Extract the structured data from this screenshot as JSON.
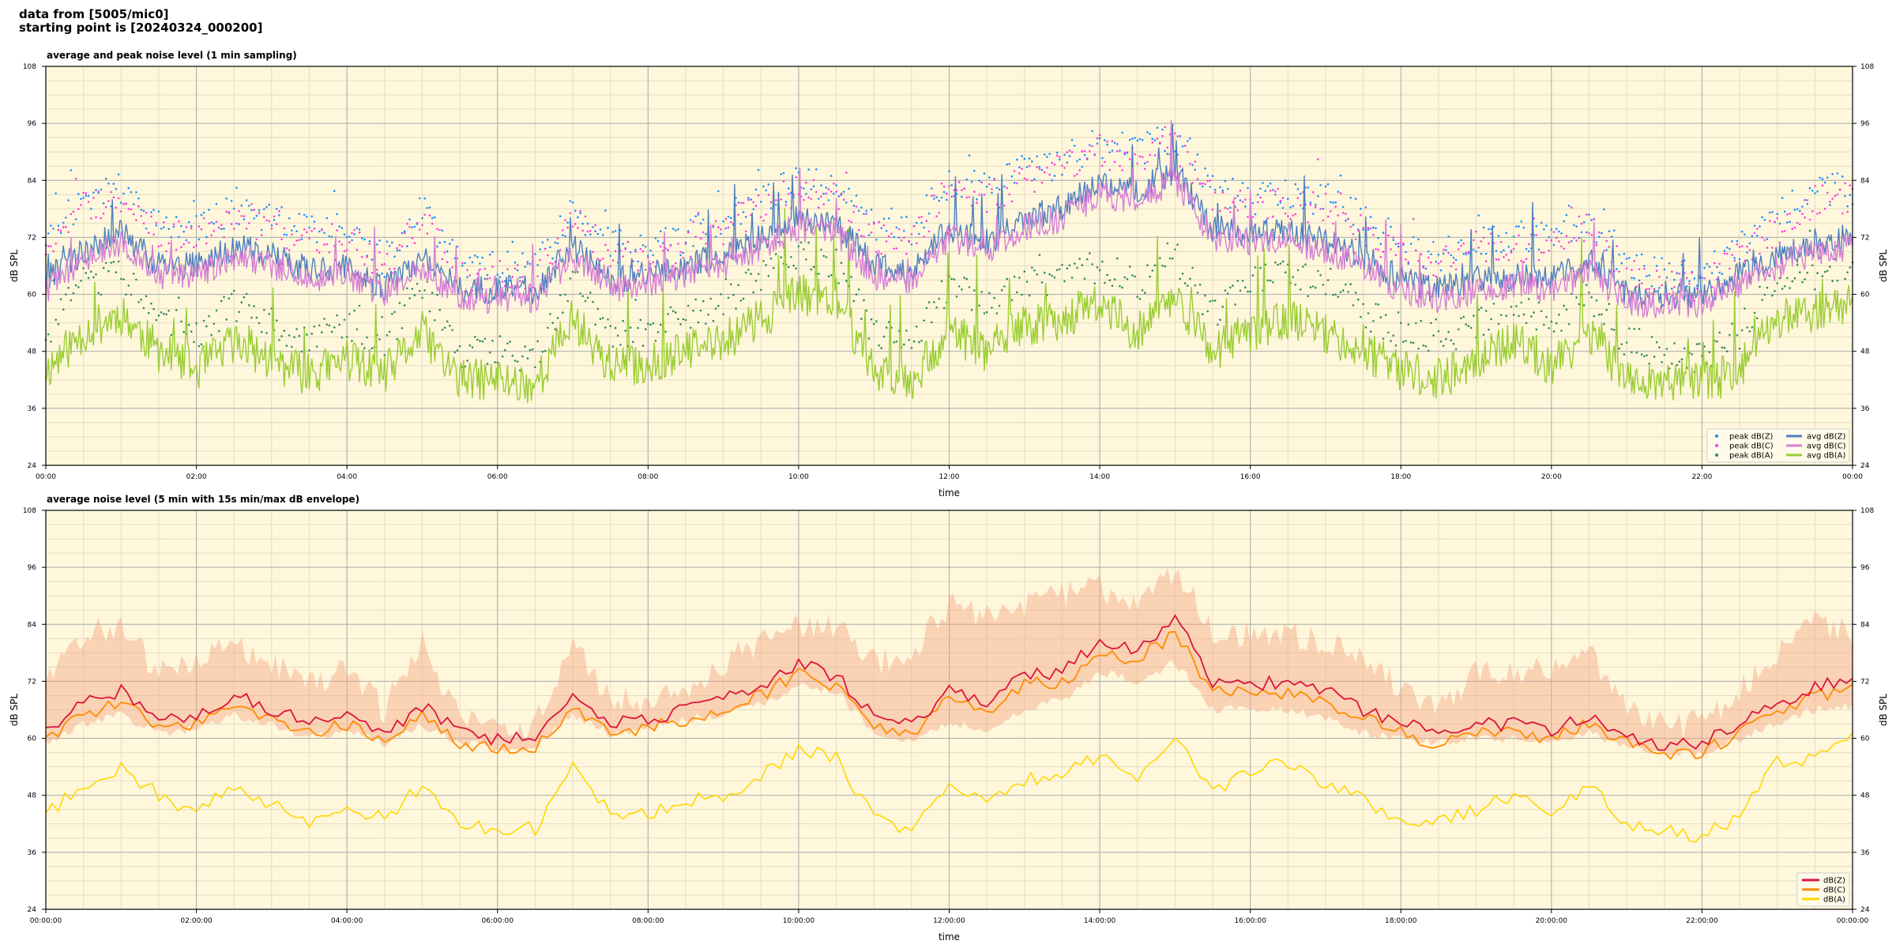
{
  "header": {
    "line1": "data from [5005/mic0]",
    "line2": "starting point is [20240324_000200]"
  },
  "colors": {
    "plot_background": "#fff7dc",
    "grid_major": "#a8a8a8",
    "grid_minor": "#e3dcc2",
    "avg_z": "#4e7fbf",
    "avg_c": "#d67fd6",
    "avg_a": "#9acd32",
    "peak_z": "#1e90ff",
    "peak_c": "#ff3ddb",
    "peak_a": "#2e8b57",
    "bottom_z": "#dc143c",
    "bottom_c": "#ff8c00",
    "bottom_a": "#ffd700",
    "envelope": "#f4a582"
  },
  "chart_data": [
    {
      "type": "line",
      "title": "average and peak noise level (1 min sampling)",
      "xlabel": "time",
      "ylabel": "dB SPL",
      "ylim": [
        24,
        108
      ],
      "yticks": [
        "24",
        "36",
        "48",
        "60",
        "72",
        "84",
        "96",
        "108"
      ],
      "xlim": [
        "00:00",
        "24:00"
      ],
      "xticks": [
        "00:00",
        "02:00",
        "04:00",
        "06:00",
        "08:00",
        "10:00",
        "12:00",
        "14:00",
        "16:00",
        "18:00",
        "20:00",
        "22:00",
        "00:00"
      ],
      "grid": true,
      "legend_position": "bottom-right",
      "legend": [
        "peak dB(Z)",
        "peak dB(C)",
        "peak dB(A)",
        "avg dB(Z)",
        "avg dB(C)",
        "avg dB(A)"
      ],
      "x": [
        0,
        0.5,
        1,
        1.5,
        2,
        2.5,
        3,
        3.5,
        4,
        4.5,
        5,
        5.5,
        6,
        6.5,
        7,
        7.5,
        8,
        8.5,
        9,
        9.5,
        10,
        10.5,
        11,
        11.5,
        12,
        12.5,
        13,
        13.5,
        14,
        14.5,
        15,
        15.5,
        16,
        16.5,
        17,
        17.5,
        18,
        18.5,
        19,
        19.5,
        20,
        20.5,
        21,
        21.5,
        22,
        22.5,
        23,
        23.5,
        24
      ],
      "series": [
        {
          "name": "avg dB(Z)",
          "style": "line",
          "values": [
            63,
            69,
            73,
            66,
            66,
            70,
            68,
            65,
            66,
            61,
            68,
            61,
            61,
            61,
            70,
            63,
            64,
            66,
            68,
            72,
            76,
            75,
            66,
            65,
            74,
            71,
            76,
            78,
            84,
            82,
            86,
            74,
            73,
            73,
            71,
            68,
            63,
            61,
            63,
            64,
            63,
            67,
            60,
            60,
            60,
            64,
            68,
            71,
            72
          ]
        },
        {
          "name": "avg dB(C)",
          "style": "line",
          "values": [
            61,
            67,
            71,
            64,
            64,
            68,
            66,
            63,
            64,
            60,
            66,
            59,
            59,
            59,
            68,
            61,
            62,
            64,
            66,
            70,
            74,
            73,
            64,
            63,
            72,
            69,
            74,
            76,
            81,
            80,
            84,
            72,
            71,
            71,
            69,
            66,
            61,
            59,
            61,
            62,
            61,
            65,
            58,
            58,
            58,
            62,
            66,
            69,
            70
          ]
        },
        {
          "name": "avg dB(A)",
          "style": "line",
          "values": [
            44,
            52,
            56,
            48,
            44,
            50,
            46,
            43,
            46,
            43,
            52,
            42,
            42,
            41,
            55,
            45,
            45,
            48,
            50,
            55,
            60,
            59,
            44,
            42,
            52,
            48,
            53,
            55,
            58,
            52,
            60,
            48,
            52,
            55,
            52,
            48,
            44,
            42,
            46,
            50,
            45,
            52,
            42,
            42,
            41,
            44,
            55,
            56,
            58
          ]
        },
        {
          "name": "peak dB(Z)",
          "style": "points",
          "values": [
            72,
            80,
            82,
            74,
            74,
            78,
            76,
            73,
            74,
            67,
            78,
            66,
            66,
            65,
            78,
            70,
            70,
            72,
            76,
            80,
            84,
            82,
            74,
            74,
            84,
            82,
            86,
            88,
            92,
            90,
            93,
            82,
            80,
            81,
            80,
            76,
            70,
            68,
            72,
            72,
            72,
            76,
            66,
            64,
            64,
            70,
            76,
            82,
            82
          ]
        },
        {
          "name": "peak dB(C)",
          "style": "points",
          "values": [
            70,
            78,
            80,
            72,
            72,
            76,
            74,
            71,
            72,
            65,
            76,
            64,
            64,
            63,
            76,
            68,
            68,
            70,
            74,
            78,
            82,
            80,
            72,
            72,
            82,
            80,
            84,
            86,
            90,
            88,
            91,
            80,
            78,
            79,
            78,
            74,
            68,
            66,
            70,
            70,
            70,
            74,
            64,
            62,
            62,
            68,
            74,
            80,
            80
          ]
        },
        {
          "name": "peak dB(A)",
          "style": "points",
          "values": [
            52,
            62,
            64,
            56,
            52,
            58,
            54,
            50,
            54,
            50,
            62,
            48,
            48,
            46,
            64,
            52,
            52,
            56,
            58,
            64,
            68,
            66,
            52,
            50,
            62,
            58,
            62,
            64,
            66,
            62,
            68,
            56,
            62,
            64,
            62,
            56,
            52,
            50,
            54,
            58,
            54,
            60,
            50,
            48,
            46,
            52,
            64,
            64,
            66
          ]
        }
      ]
    },
    {
      "type": "line",
      "title": "average noise level (5 min with 15s min/max dB envelope)",
      "xlabel": "time",
      "ylabel": "dB SPL",
      "ylim": [
        24,
        108
      ],
      "yticks": [
        "24",
        "36",
        "48",
        "60",
        "72",
        "84",
        "96",
        "108"
      ],
      "xlim": [
        "00:00:00",
        "24:00:00"
      ],
      "xticks": [
        "00:00:00",
        "02:00:00",
        "04:00:00",
        "06:00:00",
        "08:00:00",
        "10:00:00",
        "12:00:00",
        "14:00:00",
        "16:00:00",
        "18:00:00",
        "20:00:00",
        "22:00:00",
        "00:00:00"
      ],
      "grid": true,
      "legend_position": "bottom-right",
      "legend": [
        "dB(Z)",
        "dB(C)",
        "dB(A)"
      ],
      "x": [
        0,
        0.5,
        1,
        1.5,
        2,
        2.5,
        3,
        3.5,
        4,
        4.5,
        5,
        5.5,
        6,
        6.5,
        7,
        7.5,
        8,
        8.5,
        9,
        9.5,
        10,
        10.5,
        11,
        11.5,
        12,
        12.5,
        13,
        13.5,
        14,
        14.5,
        15,
        15.5,
        16,
        16.5,
        17,
        17.5,
        18,
        18.5,
        19,
        19.5,
        20,
        20.5,
        21,
        21.5,
        22,
        22.5,
        23,
        23.5,
        24
      ],
      "series": [
        {
          "name": "dB(Z)",
          "values": [
            62,
            67,
            70,
            64,
            65,
            69,
            66,
            63,
            65,
            61,
            67,
            61,
            60,
            60,
            69,
            63,
            64,
            66,
            68,
            71,
            76,
            73,
            65,
            63,
            70,
            68,
            73,
            74,
            80,
            79,
            85,
            72,
            72,
            71,
            70,
            66,
            63,
            61,
            63,
            63,
            62,
            65,
            61,
            58,
            59,
            63,
            67,
            71,
            72
          ]
        },
        {
          "name": "dB(C)",
          "values": [
            60,
            65,
            68,
            62,
            63,
            67,
            64,
            61,
            63,
            59,
            65,
            59,
            58,
            58,
            67,
            61,
            62,
            64,
            66,
            69,
            74,
            71,
            63,
            61,
            68,
            66,
            71,
            72,
            77,
            77,
            82,
            70,
            70,
            69,
            68,
            64,
            61,
            59,
            61,
            61,
            60,
            63,
            59,
            56,
            57,
            61,
            65,
            69,
            70
          ]
        },
        {
          "name": "dB(A)",
          "values": [
            44,
            50,
            54,
            48,
            44,
            50,
            46,
            42,
            46,
            43,
            50,
            42,
            41,
            41,
            54,
            44,
            44,
            47,
            48,
            52,
            58,
            56,
            43,
            41,
            50,
            46,
            51,
            53,
            56,
            52,
            60,
            48,
            53,
            55,
            50,
            47,
            43,
            42,
            45,
            48,
            44,
            50,
            42,
            41,
            39,
            44,
            55,
            56,
            62
          ]
        }
      ],
      "envelope": {
        "min": [
          59,
          63,
          65,
          61,
          62,
          65,
          63,
          60,
          62,
          59,
          63,
          59,
          58,
          58,
          65,
          61,
          62,
          64,
          65,
          67,
          71,
          70,
          61,
          60,
          63,
          62,
          66,
          68,
          74,
          72,
          76,
          66,
          66,
          66,
          64,
          61,
          60,
          59,
          60,
          60,
          59,
          61,
          58,
          57,
          57,
          60,
          63,
          66,
          67
        ],
        "max": [
          72,
          82,
          84,
          74,
          76,
          80,
          76,
          72,
          74,
          66,
          80,
          64,
          63,
          63,
          80,
          68,
          68,
          70,
          76,
          80,
          84,
          84,
          76,
          78,
          88,
          86,
          88,
          90,
          92,
          88,
          96,
          82,
          82,
          82,
          80,
          78,
          70,
          66,
          74,
          74,
          74,
          78,
          66,
          63,
          63,
          70,
          78,
          84,
          82
        ]
      }
    }
  ]
}
